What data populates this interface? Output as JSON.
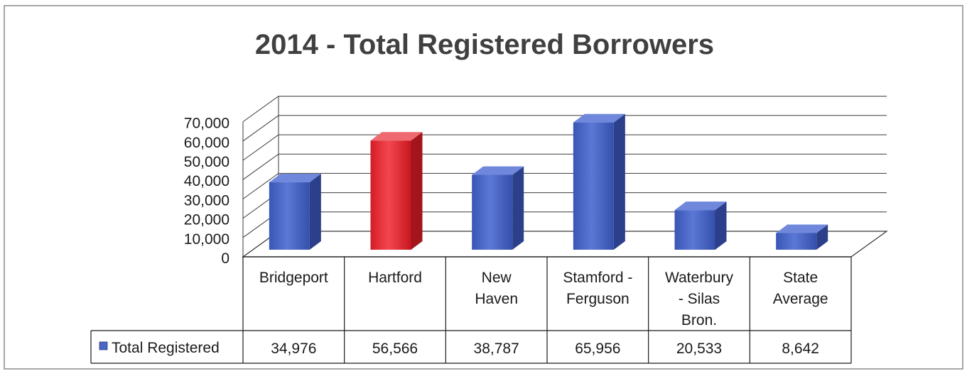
{
  "chart_data": {
    "type": "bar",
    "title": "2014 - Total Registered Borrowers",
    "categories": [
      [
        "Bridgeport"
      ],
      [
        "Hartford"
      ],
      [
        "New",
        "Haven"
      ],
      [
        "Stamford -",
        "Ferguson"
      ],
      [
        "Waterbury",
        "- Silas",
        "Bron."
      ],
      [
        "State",
        "Average"
      ]
    ],
    "series": [
      {
        "name": "Total Registered",
        "values": [
          34976,
          56566,
          38787,
          65956,
          20533,
          8642
        ],
        "value_labels": [
          "34,976",
          "56,566",
          "38,787",
          "65,956",
          "20,533",
          "8,642"
        ],
        "color": "#4a66c4",
        "highlight_index": 1,
        "highlight_color": "#e8323a"
      }
    ],
    "y_ticks": [
      "0",
      "10,000",
      "20,000",
      "30,000",
      "40,000",
      "50,000",
      "60,000",
      "70,000"
    ],
    "ylim": [
      0,
      70000
    ],
    "grid": true,
    "legend_placement": "data-table-left",
    "style": "3d-column-with-data-table"
  }
}
